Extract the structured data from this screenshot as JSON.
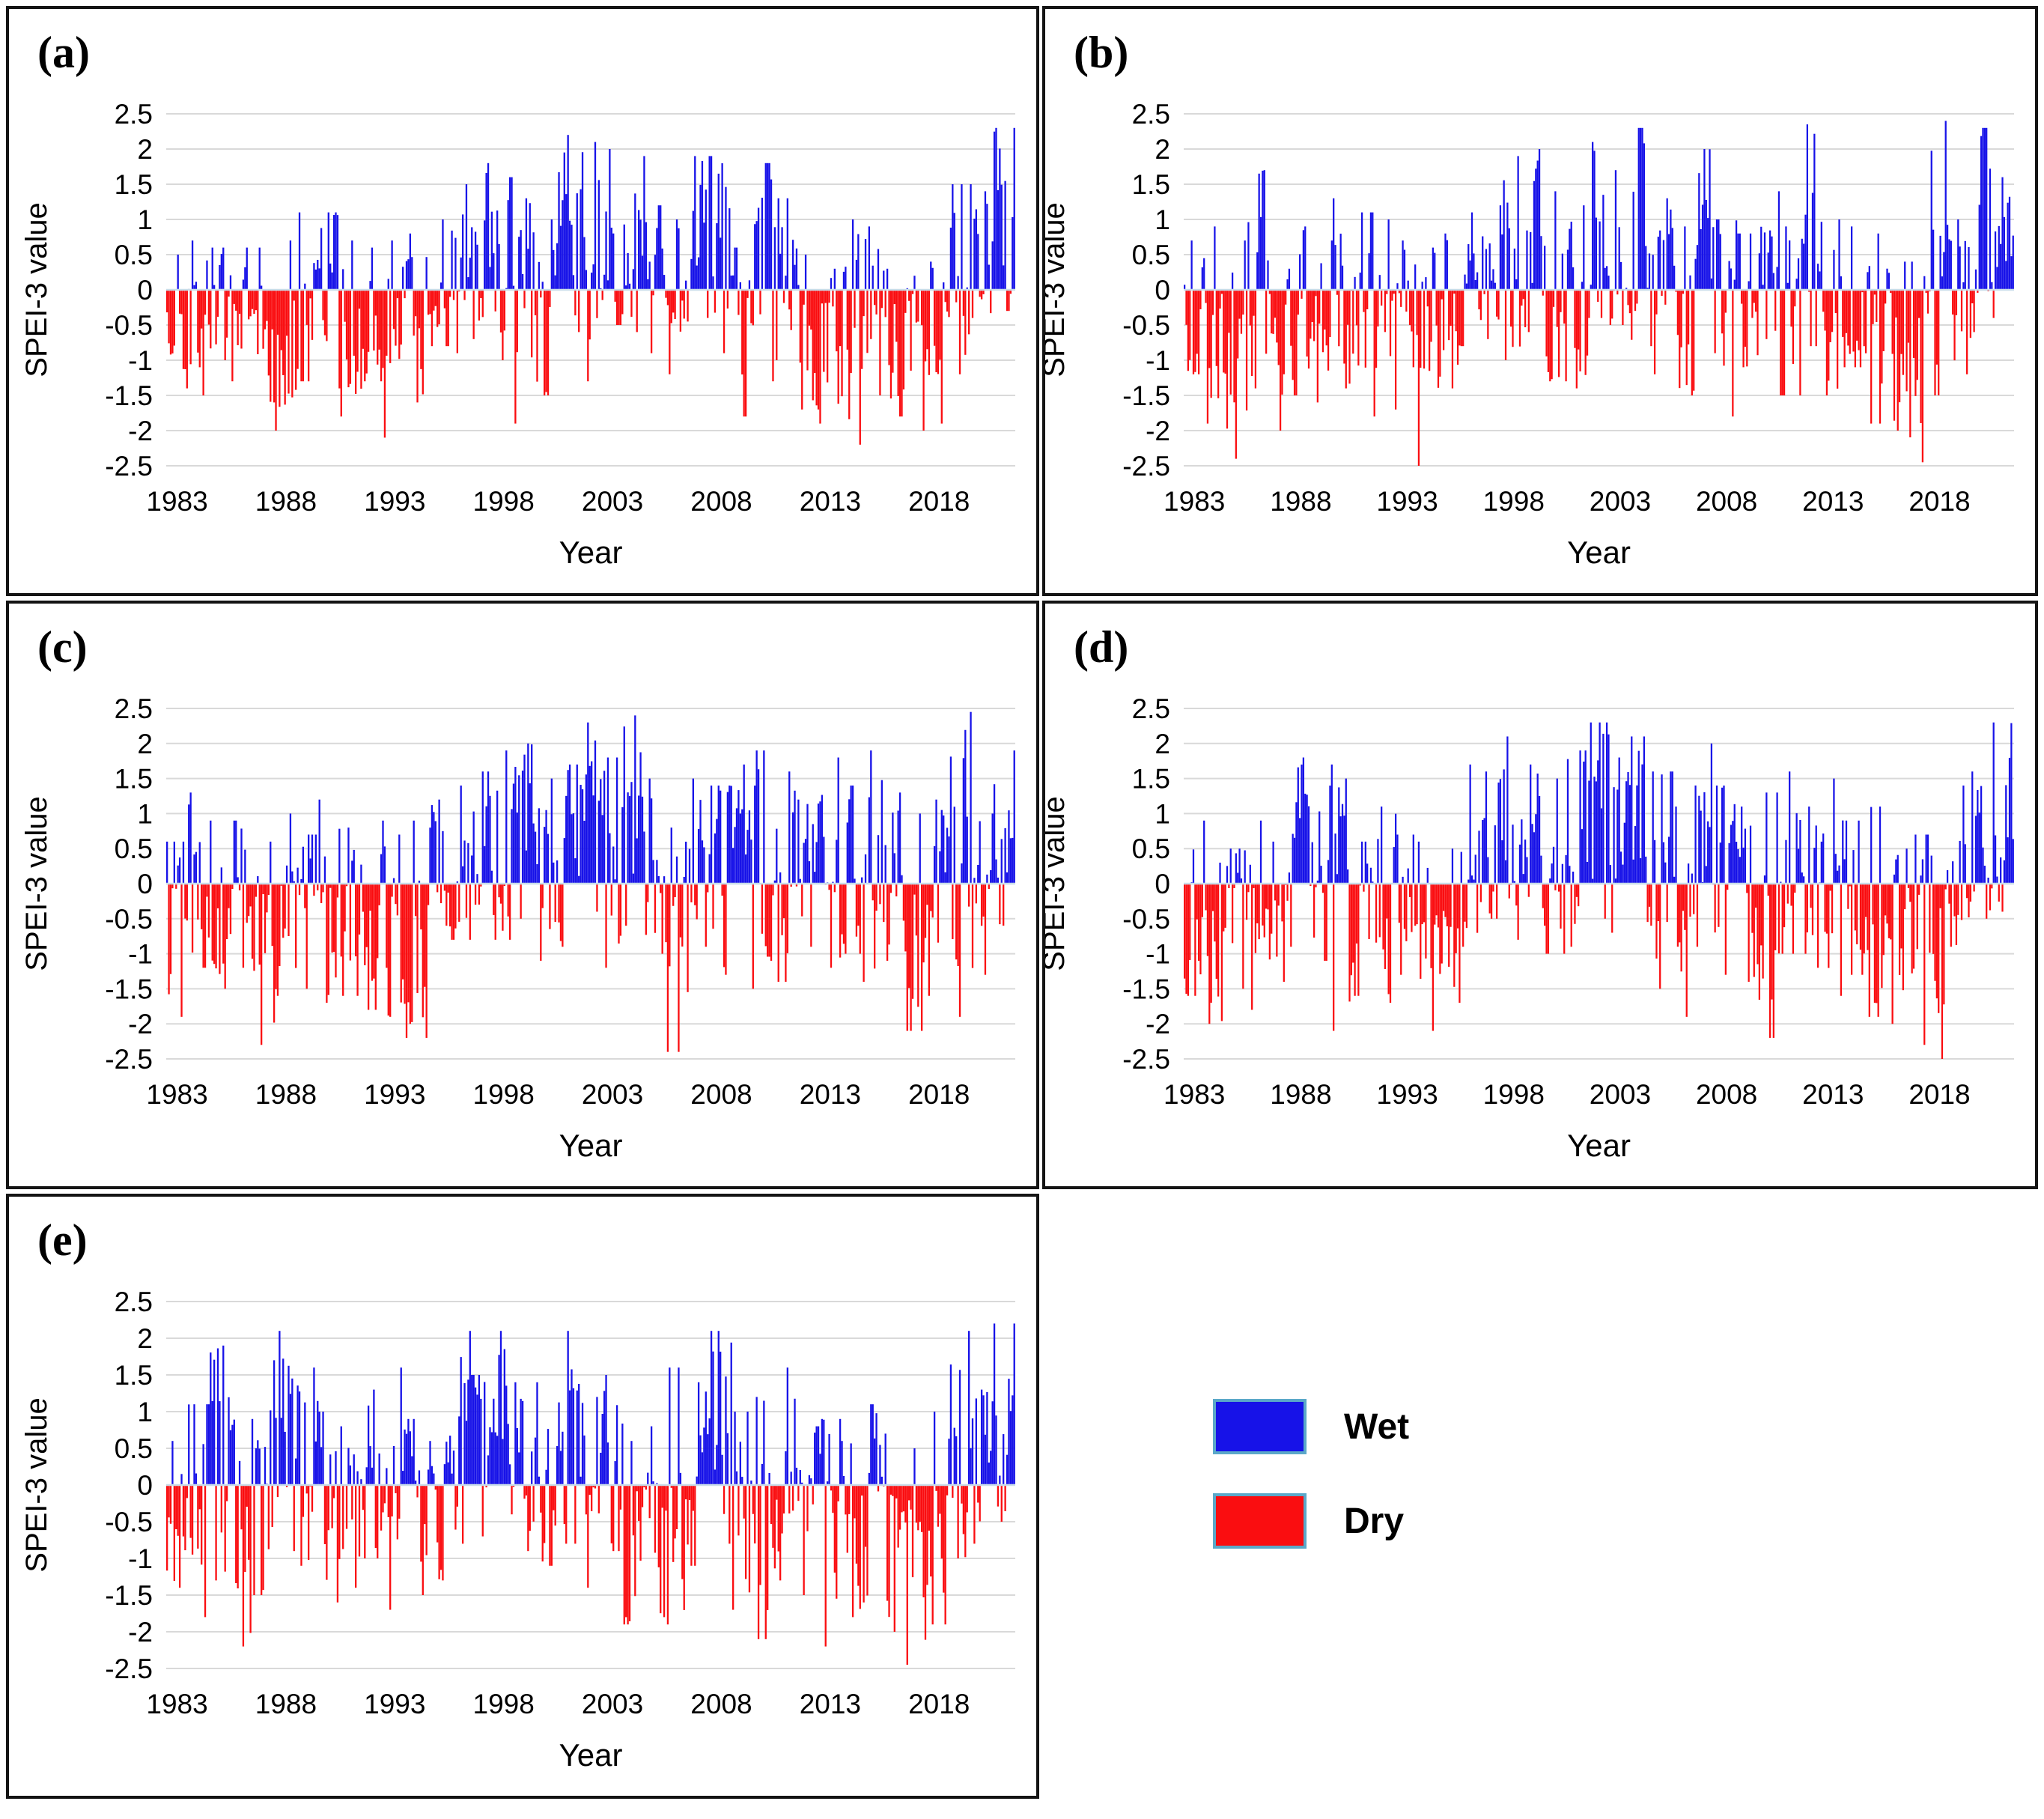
{
  "figure": {
    "description": "Five-panel SPEI-3 time series (1983-2021), monthly bars; blue positive = wet, red negative = dry",
    "panel_labels": [
      "(a)",
      "(b)",
      "(c)",
      "(d)",
      "(e)"
    ]
  },
  "legend": {
    "items": [
      {
        "label": "Wet",
        "color": "#1712e8"
      },
      {
        "label": "Dry",
        "color": "#fa0d10"
      }
    ],
    "swatch_border": "#5ba8c9"
  },
  "colors": {
    "wet": "#1712e8",
    "dry": "#fa0d10",
    "gridline": "#d9d9d9",
    "zero_line": "#c9dde9",
    "text": "#000000",
    "panel_border": "#141414"
  },
  "chart_data": [
    {
      "id": "a",
      "panel_label": "(a)",
      "type": "bar",
      "xlabel": "Year",
      "ylabel": "SPEI-3 value",
      "ylim": [
        -2.5,
        2.5
      ],
      "ytick_step": 0.5,
      "yticks": [
        2.5,
        2,
        1.5,
        1,
        0.5,
        0,
        -0.5,
        -1,
        -1.5,
        -2,
        -2.5
      ],
      "xticks": [
        1983,
        1988,
        1993,
        1998,
        2003,
        2008,
        2013,
        2018
      ],
      "x_start": 1983,
      "x_end": 2021,
      "points_per_year": 12,
      "grid": true,
      "series_names": [
        "Wet",
        "Dry"
      ],
      "yearly_envelope": {
        "note": "approximate yearly max (wet) and min (dry) SPEI-3 read from chart",
        "wet": [
          0.5,
          0.7,
          0.6,
          0.6,
          0.6,
          0.7,
          1.1,
          1.1,
          0.7,
          0.6,
          0.7,
          0.8,
          1.0,
          1.5,
          1.8,
          1.6,
          1.3,
          1.0,
          2.2,
          2.1,
          2.0,
          1.9,
          1.2,
          1.0,
          1.9,
          1.9,
          0.6,
          1.8,
          1.3,
          0.5,
          0.3,
          1.0,
          0.9,
          0.3,
          0.2,
          0.4,
          1.5,
          1.4,
          2.3
        ],
        "dry": [
          -1.4,
          -1.5,
          -1.0,
          -1.3,
          -1.6,
          -2.0,
          -1.3,
          -1.4,
          -1.8,
          -1.3,
          -2.1,
          -1.6,
          -0.8,
          -0.9,
          -0.7,
          -1.0,
          -1.9,
          -1.5,
          -0.6,
          -1.3,
          -0.5,
          -0.6,
          -0.9,
          -1.2,
          -0.4,
          -0.9,
          -1.8,
          -1.3,
          -1.0,
          -1.7,
          -1.9,
          -2.2,
          -1.5,
          -1.8,
          -2.0,
          -1.9,
          -1.2,
          -0.4,
          -0.3
        ]
      }
    },
    {
      "id": "b",
      "panel_label": "(b)",
      "type": "bar",
      "xlabel": "Year",
      "ylabel": "SPEI-3 value",
      "ylim": [
        -2.5,
        2.5
      ],
      "ytick_step": 0.5,
      "yticks": [
        2.5,
        2,
        1.5,
        1,
        0.5,
        0,
        -0.5,
        -1,
        -1.5,
        -2,
        -2.5
      ],
      "xticks": [
        1983,
        1988,
        1993,
        1998,
        2003,
        2008,
        2013,
        2018
      ],
      "x_start": 1983,
      "x_end": 2021,
      "points_per_year": 12,
      "grid": true,
      "series_names": [
        "Wet",
        "Dry"
      ],
      "yearly_envelope": {
        "note": "approximate yearly max (wet) and min (dry) SPEI-3 read from chart",
        "wet": [
          0.7,
          0.9,
          0.7,
          1.7,
          0.3,
          0.9,
          0.7,
          1.3,
          1.1,
          1.0,
          0.7,
          0.6,
          0.8,
          1.1,
          1.2,
          1.9,
          2.0,
          1.4,
          1.2,
          2.1,
          1.7,
          2.3,
          1.3,
          0.9,
          2.0,
          1.0,
          0.8,
          1.4,
          0.9,
          2.35,
          1.0,
          0.9,
          0.8,
          0.4,
          0.4,
          2.4,
          1.0,
          2.3,
          1.6
        ],
        "dry": [
          -1.2,
          -1.9,
          -2.4,
          -1.4,
          -2.0,
          -1.5,
          -1.6,
          -1.4,
          -1.8,
          -1.7,
          -1.1,
          -2.5,
          -1.4,
          -0.8,
          -0.7,
          -1.0,
          -0.6,
          -1.3,
          -1.4,
          -0.4,
          -0.5,
          -0.8,
          -1.2,
          -1.5,
          -0.9,
          -1.8,
          -1.1,
          -0.7,
          -1.5,
          -0.8,
          -1.5,
          -1.1,
          -1.9,
          -2.0,
          -2.45,
          -1.5,
          -1.2,
          -0.6,
          -0.4
        ]
      }
    },
    {
      "id": "c",
      "panel_label": "(c)",
      "type": "bar",
      "xlabel": "Year",
      "ylabel": "SPEI-3 value",
      "ylim": [
        -2.5,
        2.5
      ],
      "ytick_step": 0.5,
      "yticks": [
        2.5,
        2,
        1.5,
        1,
        0.5,
        0,
        -0.5,
        -1,
        -1.5,
        -2,
        -2.5
      ],
      "xticks": [
        1983,
        1988,
        1993,
        1998,
        2003,
        2008,
        2013,
        2018
      ],
      "x_start": 1983,
      "x_end": 2021,
      "points_per_year": 12,
      "grid": true,
      "series_names": [
        "Wet",
        "Dry"
      ],
      "yearly_envelope": {
        "note": "approximate yearly max (wet) and min (dry) SPEI-3 read from chart",
        "wet": [
          0.6,
          1.3,
          0.9,
          0.9,
          0.6,
          1.0,
          0.7,
          1.2,
          0.8,
          0.9,
          0.7,
          0.9,
          1.2,
          1.4,
          1.6,
          1.9,
          2.0,
          1.5,
          1.7,
          2.3,
          1.8,
          2.4,
          1.5,
          0.8,
          1.5,
          1.4,
          1.7,
          1.9,
          1.6,
          1.2,
          1.8,
          1.4,
          1.9,
          1.3,
          1.0,
          1.2,
          2.45,
          1.0,
          1.9
        ],
        "dry": [
          -1.9,
          -1.2,
          -1.5,
          -1.2,
          -2.3,
          -1.6,
          -1.5,
          -1.7,
          -1.6,
          -1.8,
          -1.9,
          -2.2,
          -0.6,
          -0.8,
          -0.3,
          -0.8,
          -0.5,
          -1.1,
          -0.9,
          -0.4,
          -1.2,
          -0.6,
          -1.0,
          -2.4,
          -0.9,
          -1.3,
          -1.5,
          -1.1,
          -1.4,
          -0.9,
          -1.2,
          -1.0,
          -1.4,
          -1.1,
          -2.1,
          -1.6,
          -1.9,
          -1.3,
          -0.6
        ]
      }
    },
    {
      "id": "d",
      "panel_label": "(d)",
      "type": "bar",
      "xlabel": "Year",
      "ylabel": "SPEI-3 value",
      "ylim": [
        -2.5,
        2.5
      ],
      "ytick_step": 0.5,
      "yticks": [
        2.5,
        2,
        1.5,
        1,
        0.5,
        0,
        -0.5,
        -1,
        -1.5,
        -2,
        -2.5
      ],
      "xticks": [
        1983,
        1988,
        1993,
        1998,
        2003,
        2008,
        2013,
        2018
      ],
      "x_start": 1983,
      "x_end": 2021,
      "points_per_year": 12,
      "grid": true,
      "series_names": [
        "Wet",
        "Dry"
      ],
      "yearly_envelope": {
        "note": "approximate yearly max (wet) and min (dry) SPEI-3 read from chart",
        "wet": [
          0.9,
          0.3,
          0.5,
          0.9,
          0.6,
          1.8,
          1.7,
          1.5,
          0.6,
          1.1,
          0.7,
          0.6,
          0.5,
          1.7,
          1.6,
          2.1,
          1.7,
          1.5,
          1.9,
          2.3,
          1.8,
          2.1,
          1.6,
          1.1,
          2.0,
          1.4,
          1.1,
          1.3,
          1.6,
          1.1,
          1.5,
          0.9,
          1.1,
          0.5,
          0.7,
          0.4,
          1.4,
          1.6,
          2.3
        ],
        "dry": [
          -1.6,
          -2.0,
          -1.5,
          -1.8,
          -1.4,
          -0.9,
          -1.1,
          -2.1,
          -1.6,
          -1.7,
          -1.3,
          -2.1,
          -1.7,
          -0.9,
          -0.5,
          -0.8,
          -0.6,
          -1.0,
          -0.9,
          -0.5,
          -0.7,
          -0.6,
          -1.5,
          -1.9,
          -0.9,
          -1.3,
          -1.4,
          -2.2,
          -1.0,
          -1.2,
          -1.6,
          -1.3,
          -1.9,
          -2.0,
          -2.3,
          -2.5,
          -0.9,
          -0.5,
          -0.4
        ]
      }
    },
    {
      "id": "e",
      "panel_label": "(e)",
      "type": "bar",
      "xlabel": "Year",
      "ylabel": "SPEI-3 value",
      "ylim": [
        -2.5,
        2.5
      ],
      "ytick_step": 0.5,
      "yticks": [
        2.5,
        2,
        1.5,
        1,
        0.5,
        0,
        -0.5,
        -1,
        -1.5,
        -2,
        -2.5
      ],
      "xticks": [
        1983,
        1988,
        1993,
        1998,
        2003,
        2008,
        2013,
        2018
      ],
      "x_start": 1983,
      "x_end": 2021,
      "points_per_year": 12,
      "grid": true,
      "series_names": [
        "Wet",
        "Dry"
      ],
      "yearly_envelope": {
        "note": "approximate yearly max (wet) and min (dry) SPEI-3 read from chart",
        "wet": [
          0.6,
          1.1,
          1.9,
          0.9,
          1.7,
          2.1,
          1.6,
          1.0,
          0.8,
          1.3,
          1.6,
          0.9,
          0.6,
          2.1,
          1.5,
          2.1,
          1.4,
          1.4,
          2.1,
          1.2,
          1.5,
          0.6,
          0.8,
          1.6,
          1.4,
          2.1,
          1.0,
          1.2,
          1.6,
          0.8,
          0.9,
          0.6,
          1.1,
          0.7,
          0.5,
          1.0,
          2.1,
          1.3,
          2.2
        ],
        "dry": [
          -1.4,
          -1.8,
          -1.3,
          -2.2,
          -1.5,
          -0.9,
          -1.1,
          -1.6,
          -1.4,
          -1.0,
          -1.7,
          -1.5,
          -1.3,
          -0.8,
          -0.7,
          -0.4,
          -0.9,
          -1.1,
          -0.8,
          -1.4,
          -0.9,
          -1.9,
          -1.8,
          -1.9,
          -1.1,
          -0.8,
          -1.7,
          -2.1,
          -1.3,
          -1.5,
          -2.2,
          -1.8,
          -1.6,
          -2.0,
          -2.45,
          -1.9,
          -1.0,
          -0.8,
          -0.5
        ]
      }
    }
  ]
}
